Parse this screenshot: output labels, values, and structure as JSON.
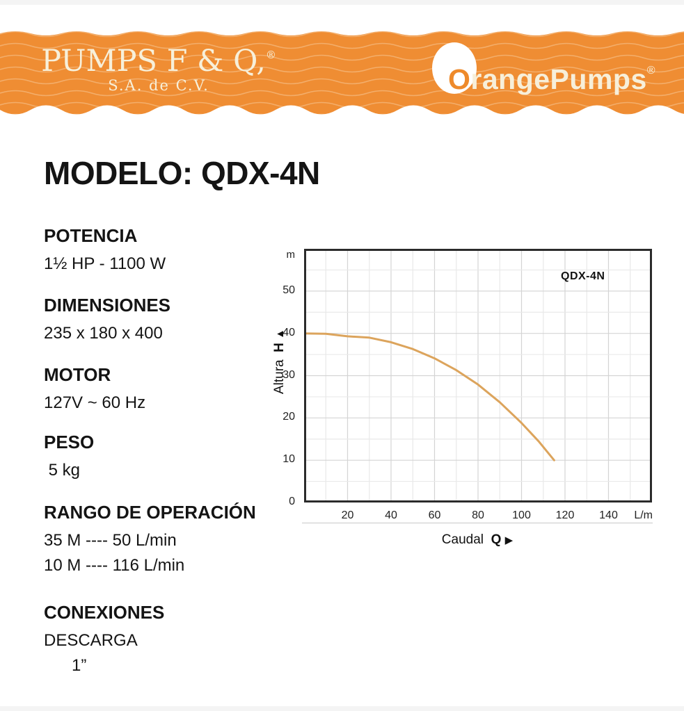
{
  "banner": {
    "bg_color": "#EF8D33",
    "wave_line_color": "#FBEFDC",
    "left_logo": {
      "title": "PUMPS F & Q,",
      "reg_mark": "®",
      "subtitle": "S.A. de C.V.",
      "text_color": "#F7F0DA"
    },
    "right_logo": {
      "brand_first_letter": "O",
      "brand_rest": "rangePumps",
      "reg_mark": "®",
      "text_color": "#F7EFDA",
      "o_color": "#EE8A2B"
    }
  },
  "model_title": "MODELO: QDX-4N",
  "specs": [
    {
      "heading": "POTENCIA",
      "values": [
        "1½ HP - 1100 W"
      ]
    },
    {
      "heading": "DIMENSIONES",
      "values": [
        "235 x 180 x 400"
      ]
    },
    {
      "heading": "MOTOR",
      "values": [
        "127V ~ 60 Hz"
      ]
    },
    {
      "heading": "PESO",
      "values": [
        " 5 kg"
      ]
    },
    {
      "heading": "RANGO DE OPERACIÓN",
      "values": [
        "35 M ---- 50 L/min",
        "10 M ---- 116 L/min"
      ]
    },
    {
      "heading": "CONEXIONES",
      "values": [
        "DESCARGA",
        "      1”"
      ]
    }
  ],
  "chart_data": {
    "type": "line",
    "title": "QDX-4N",
    "xlabel": "Caudal Q ▶",
    "ylabel": "Altura H ▲",
    "xlabel_parts": {
      "text": "Caudal",
      "var": "Q",
      "arrow": "▶"
    },
    "ylabel_parts": {
      "text": "Altura",
      "var": "H",
      "arrow": "▲"
    },
    "x_unit": "L/m",
    "y_unit": "m",
    "xlim": [
      0,
      160
    ],
    "ylim": [
      0,
      60
    ],
    "x_ticks": [
      20,
      40,
      60,
      80,
      100,
      120,
      140
    ],
    "y_ticks": [
      0,
      10,
      20,
      30,
      40,
      50
    ],
    "x_grid_step": 10,
    "y_grid_step": 5,
    "grid": true,
    "legend_position": "inside-top-right",
    "series": [
      {
        "name": "QDX-4N",
        "points": [
          [
            0,
            40
          ],
          [
            10,
            39.9
          ],
          [
            20,
            39.3
          ],
          [
            30,
            39.0
          ],
          [
            40,
            37.9
          ],
          [
            50,
            36.3
          ],
          [
            60,
            34.1
          ],
          [
            70,
            31.3
          ],
          [
            80,
            27.9
          ],
          [
            90,
            23.7
          ],
          [
            100,
            18.8
          ],
          [
            108,
            14.4
          ],
          [
            115,
            10
          ]
        ]
      }
    ],
    "colors": {
      "curve": "#DCA45C",
      "grid_minor": "#e9e9e9",
      "grid_major": "#d4d4d4",
      "frame": "#2b2b2b",
      "tick_text": "#222222",
      "axis_underline": "#c8c8c8"
    }
  }
}
